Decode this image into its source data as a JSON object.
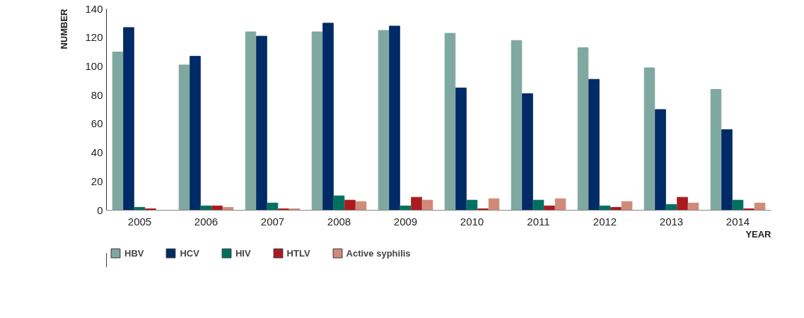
{
  "chart_data": {
    "type": "bar",
    "xlabel": "YEAR",
    "ylabel": "NUMBER",
    "categories": [
      "2005",
      "2006",
      "2007",
      "2008",
      "2009",
      "2010",
      "2011",
      "2012",
      "2013",
      "2014"
    ],
    "series": [
      {
        "name": "HBV",
        "color": "#7fa8a0",
        "values": [
          110,
          101,
          124,
          124,
          125,
          123,
          118,
          113,
          99,
          84
        ]
      },
      {
        "name": "HCV",
        "color": "#002b66",
        "values": [
          127,
          107,
          121,
          130,
          128,
          85,
          81,
          91,
          70,
          56
        ]
      },
      {
        "name": "HIV",
        "color": "#007060",
        "values": [
          2,
          3,
          5,
          10,
          3,
          7,
          7,
          3,
          4,
          7
        ]
      },
      {
        "name": "HTLV",
        "color": "#a81c20",
        "values": [
          1,
          3,
          1,
          7,
          9,
          1,
          3,
          2,
          9,
          1
        ]
      },
      {
        "name": "Active syphilis",
        "color": "#d08a78",
        "values": [
          0,
          2,
          1,
          6,
          7,
          8,
          8,
          6,
          5,
          5
        ]
      }
    ],
    "ylim": [
      0,
      140
    ],
    "yticks": [
      0,
      20,
      40,
      60,
      80,
      100,
      120,
      140
    ],
    "grid": false,
    "legend": "bottom left"
  }
}
